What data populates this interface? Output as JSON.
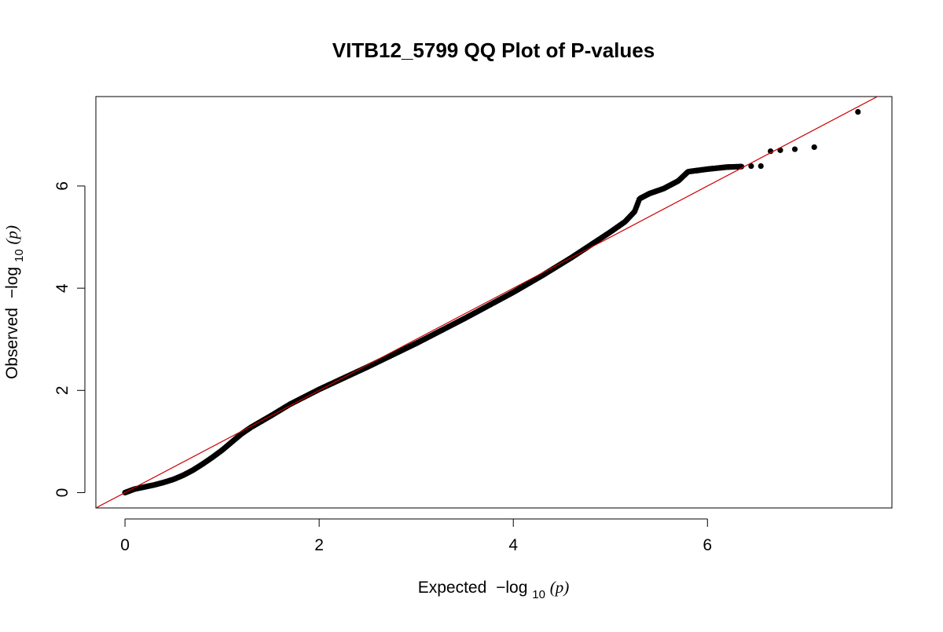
{
  "chart_data": {
    "type": "scatter",
    "title": "VITB12_5799 QQ Plot of P-values",
    "xlabel": {
      "prefix": "Expected",
      "log_text": "−log",
      "subscript": "10",
      "arg": "(p)"
    },
    "ylabel": {
      "prefix": "Observed",
      "log_text": "−log",
      "subscript": "10",
      "arg": "(p)"
    },
    "xlim": [
      -0.3,
      7.9
    ],
    "ylim": [
      -0.3,
      7.75
    ],
    "x_ticks": [
      0,
      2,
      4,
      6
    ],
    "y_ticks": [
      0,
      2,
      4,
      6
    ],
    "x_tick_labels": [
      "0",
      "2",
      "4",
      "6"
    ],
    "y_tick_labels": [
      "0",
      "2",
      "4",
      "6"
    ],
    "grid": false,
    "reference_line": {
      "slope": 1,
      "intercept": 0,
      "color": "#cc0000"
    },
    "point_color": "#000000",
    "series": [
      {
        "curve_points": [
          [
            0.0,
            0.0
          ],
          [
            0.1,
            0.07
          ],
          [
            0.2,
            0.11
          ],
          [
            0.3,
            0.15
          ],
          [
            0.4,
            0.2
          ],
          [
            0.5,
            0.26
          ],
          [
            0.6,
            0.34
          ],
          [
            0.7,
            0.44
          ],
          [
            0.8,
            0.56
          ],
          [
            0.9,
            0.69
          ],
          [
            1.0,
            0.83
          ],
          [
            1.1,
            0.99
          ],
          [
            1.2,
            1.15
          ],
          [
            1.3,
            1.28
          ],
          [
            1.5,
            1.5
          ],
          [
            1.7,
            1.73
          ],
          [
            2.0,
            2.02
          ],
          [
            2.5,
            2.46
          ],
          [
            3.0,
            2.92
          ],
          [
            3.5,
            3.41
          ],
          [
            4.0,
            3.92
          ],
          [
            4.3,
            4.25
          ],
          [
            4.6,
            4.6
          ],
          [
            4.8,
            4.85
          ],
          [
            5.0,
            5.1
          ],
          [
            5.15,
            5.3
          ],
          [
            5.25,
            5.5
          ],
          [
            5.3,
            5.75
          ],
          [
            5.4,
            5.85
          ],
          [
            5.55,
            5.95
          ],
          [
            5.7,
            6.1
          ],
          [
            5.8,
            6.28
          ],
          [
            6.0,
            6.33
          ],
          [
            6.2,
            6.37
          ],
          [
            6.35,
            6.38
          ]
        ],
        "sparse_points": [
          [
            6.45,
            6.39
          ],
          [
            6.55,
            6.39
          ],
          [
            6.65,
            6.68
          ],
          [
            6.75,
            6.7
          ],
          [
            6.9,
            6.72
          ],
          [
            7.1,
            6.76
          ],
          [
            7.55,
            7.45
          ]
        ]
      }
    ]
  }
}
